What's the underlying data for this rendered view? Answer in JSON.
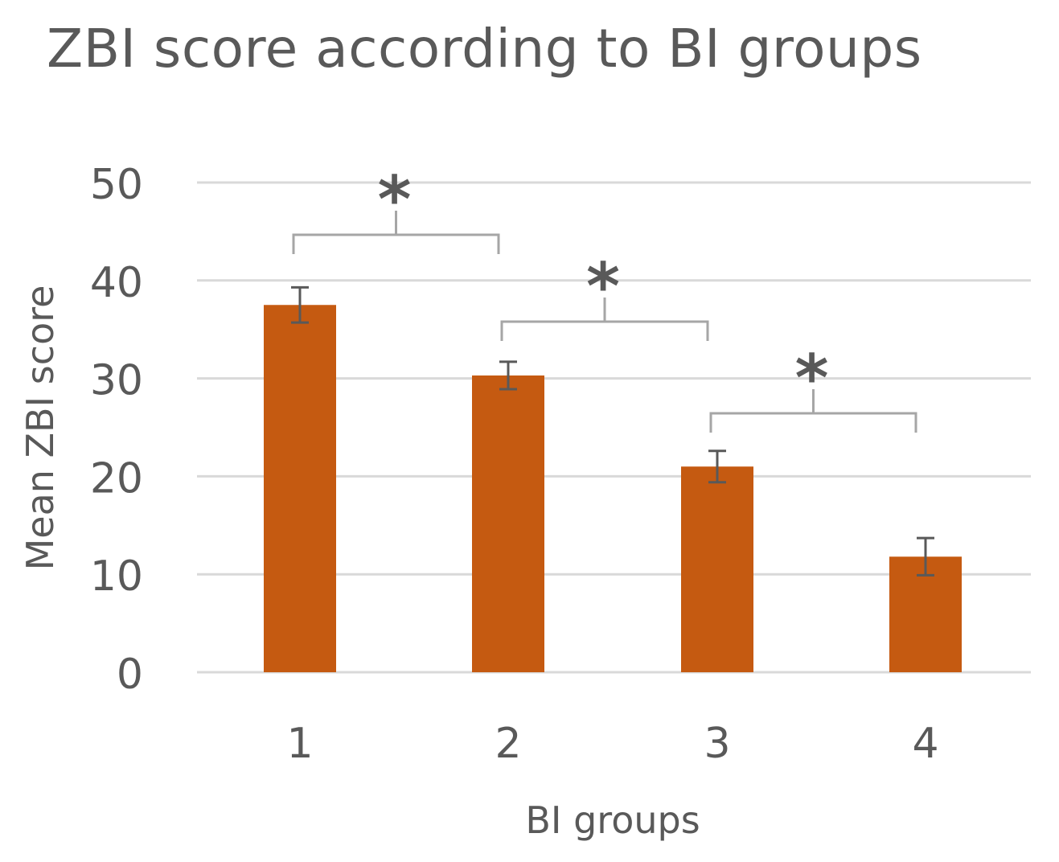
{
  "chart_data": {
    "type": "bar",
    "title": "ZBI score according to BI groups",
    "xlabel": "BI groups",
    "ylabel": "Mean ZBI score",
    "categories": [
      "1",
      "2",
      "3",
      "4"
    ],
    "values": [
      37.5,
      30.3,
      21.0,
      11.8
    ],
    "error": [
      1.8,
      1.4,
      1.6,
      1.9
    ],
    "ylim": [
      0,
      50
    ],
    "yticks": [
      "0",
      "10",
      "20",
      "30",
      "40",
      "50"
    ],
    "grid": true,
    "legend": "none",
    "bar_color": "#C55A11",
    "significance": [
      {
        "from": "1",
        "to": "2",
        "label": "*"
      },
      {
        "from": "2",
        "to": "3",
        "label": "*"
      },
      {
        "from": "3",
        "to": "4",
        "label": "*"
      }
    ]
  },
  "colors": {
    "bar": "#C55A11",
    "text": "#595959",
    "grid": "#D9D9D9",
    "bracket": "#A6A6A6"
  }
}
